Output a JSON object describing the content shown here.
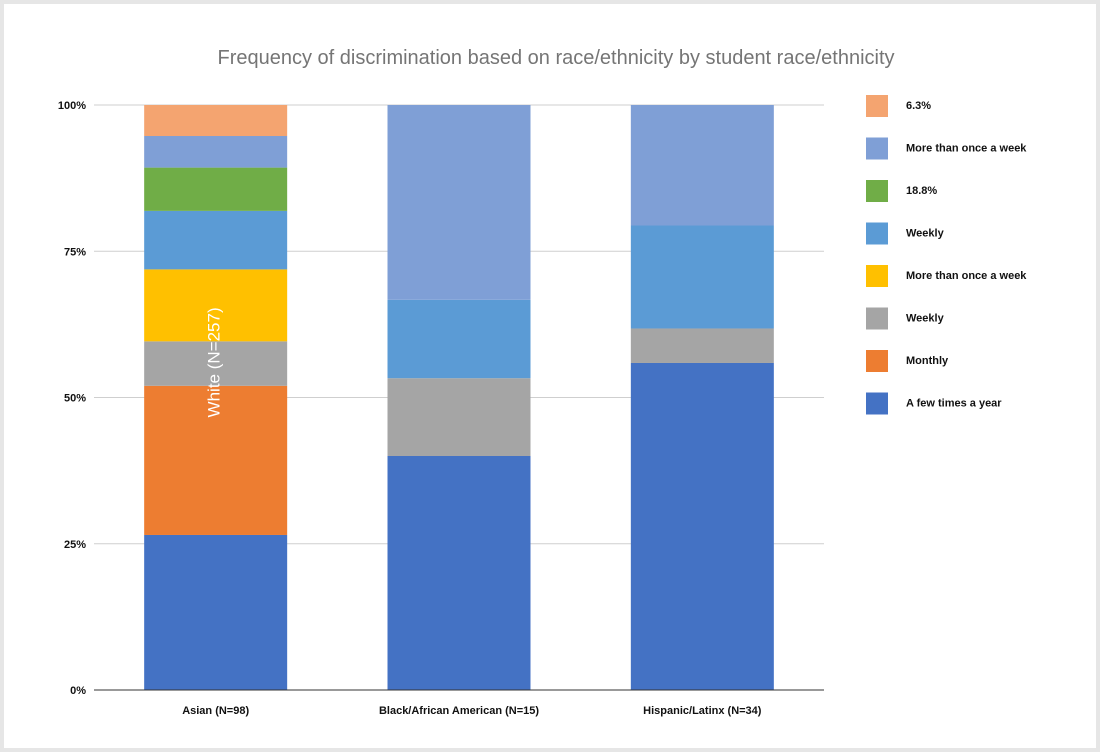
{
  "chart_data": {
    "type": "bar",
    "stacked": true,
    "title": "Frequency of discrimination based on race/ethnicity by student race/ethnicity",
    "xlabel": "",
    "ylabel": "",
    "ylim": [
      0,
      100
    ],
    "yticks": [
      {
        "value": 0,
        "label": "0%"
      },
      {
        "value": 25,
        "label": "25%"
      },
      {
        "value": 50,
        "label": "50%"
      },
      {
        "value": 75,
        "label": "75%"
      },
      {
        "value": 100,
        "label": "100%"
      }
    ],
    "grid": true,
    "legend_position": "right",
    "categories": [
      "Asian (N=98)",
      "Black/African American (N=15)",
      "Hispanic/Latinx (N=34)"
    ],
    "series": [
      {
        "name": "A few times a year",
        "color": "#4472c4",
        "values": [
          26.5,
          40.0,
          55.9
        ]
      },
      {
        "name": "Monthly",
        "color": "#ed7d31",
        "values": [
          25.5,
          0,
          0
        ]
      },
      {
        "name": "Weekly",
        "color": "#a5a5a5",
        "values": [
          7.6,
          13.3,
          5.9
        ]
      },
      {
        "name": "More than once a week",
        "color": "#ffc000",
        "values": [
          12.3,
          0,
          0
        ]
      },
      {
        "name": "Weekly",
        "color": "#5b9bd5",
        "values": [
          10.0,
          13.4,
          17.6
        ]
      },
      {
        "name": "18.8%",
        "color": "#70ad47",
        "values": [
          7.4,
          0,
          0
        ]
      },
      {
        "name": "More than once a week",
        "color": "#7f9fd6",
        "values": [
          5.4,
          33.3,
          20.6
        ]
      },
      {
        "name": "6.3%",
        "color": "#f4a470",
        "values": [
          5.3,
          0,
          0
        ]
      }
    ],
    "annotations": [
      {
        "text": "White (N=257)",
        "category_index": 0,
        "value": 56,
        "rotation": -90
      }
    ]
  }
}
